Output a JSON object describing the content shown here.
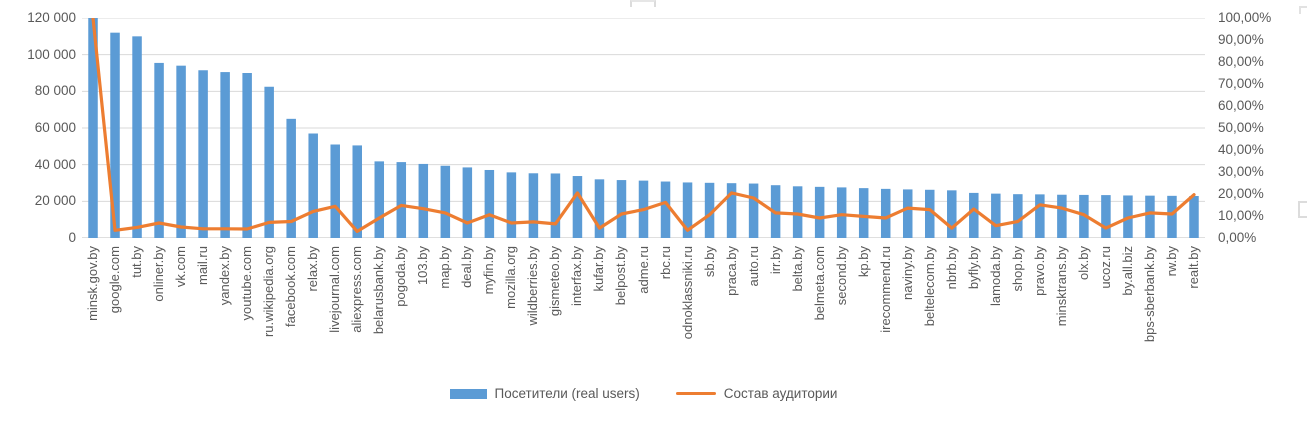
{
  "chart_data": {
    "type": "combo-bar-line",
    "title": "",
    "categories": [
      "minsk.gov.by",
      "google.com",
      "tut.by",
      "onliner.by",
      "vk.com",
      "mail.ru",
      "yandex.by",
      "youtube.com",
      "ru.wikipedia.org",
      "facebook.com",
      "relax.by",
      "livejournal.com",
      "aliexpress.com",
      "belarusbank.by",
      "pogoda.by",
      "103.by",
      "map.by",
      "deal.by",
      "myfin.by",
      "mozilla.org",
      "wildberries.by",
      "gismeteo.by",
      "interfax.by",
      "kufar.by",
      "belpost.by",
      "adme.ru",
      "rbc.ru",
      "odnoklassniki.ru",
      "sb.by",
      "praca.by",
      "auto.ru",
      "irr.by",
      "belta.by",
      "belmeta.com",
      "second.by",
      "kp.by",
      "irecommend.ru",
      "naviny.by",
      "beltelecom.by",
      "nbrb.by",
      "byfly.by",
      "lamoda.by",
      "shop.by",
      "pravo.by",
      "minsktrans.by",
      "olx.by",
      "ucoz.ru",
      "by.all.biz",
      "bps-sberbank.by",
      "rw.by",
      "realt.by"
    ],
    "series": [
      {
        "name": "Посетители (real users)",
        "type": "bar",
        "axis": "left",
        "color": "#5B9BD5",
        "values": [
          120000,
          112000,
          110000,
          95500,
          94000,
          91500,
          90500,
          90000,
          82500,
          65000,
          57000,
          51000,
          50500,
          41800,
          41400,
          40400,
          39400,
          38500,
          37100,
          35800,
          35300,
          35200,
          33800,
          32000,
          31600,
          31300,
          30800,
          30300,
          30100,
          29900,
          29700,
          28800,
          28200,
          27900,
          27600,
          27200,
          26800,
          26500,
          26300,
          26000,
          24600,
          24200,
          23900,
          23800,
          23600,
          23500,
          23400,
          23200,
          23100,
          23000,
          22900
        ]
      },
      {
        "name": "Состав аудитории",
        "type": "line",
        "axis": "right",
        "color": "#ED7D31",
        "values": [
          100,
          3.5,
          4.8,
          6.8,
          5.0,
          4.2,
          4.2,
          4.1,
          7.1,
          7.5,
          12.1,
          14.4,
          3.0,
          9.1,
          14.8,
          13.3,
          11.4,
          6.8,
          10.6,
          6.8,
          7.3,
          6.4,
          20.5,
          4.5,
          10.9,
          12.9,
          16.2,
          3.5,
          10.6,
          20.5,
          18.2,
          11.4,
          10.9,
          9.1,
          10.6,
          9.8,
          9.1,
          13.6,
          12.9,
          4.5,
          13.2,
          5.6,
          7.5,
          15.1,
          13.6,
          10.6,
          4.5,
          9.1,
          11.4,
          10.9,
          19.7
        ]
      }
    ],
    "left_axis": {
      "min": 0,
      "max": 120000,
      "ticks": [
        "120 000",
        "100 000",
        "80 000",
        "60 000",
        "40 000",
        "20 000",
        "0"
      ]
    },
    "right_axis": {
      "min": 0,
      "max": 100,
      "ticks": [
        "100,00%",
        "90,00%",
        "80,00%",
        "70,00%",
        "60,00%",
        "50,00%",
        "40,00%",
        "30,00%",
        "20,00%",
        "10,00%",
        "0,00%"
      ]
    },
    "grid": true,
    "legend_position": "bottom",
    "colors": {
      "grid": "#D9D9D9",
      "axis_line": "#BFBFBF",
      "text": "#595959",
      "bar": "#5B9BD5",
      "line": "#ED7D31"
    }
  }
}
